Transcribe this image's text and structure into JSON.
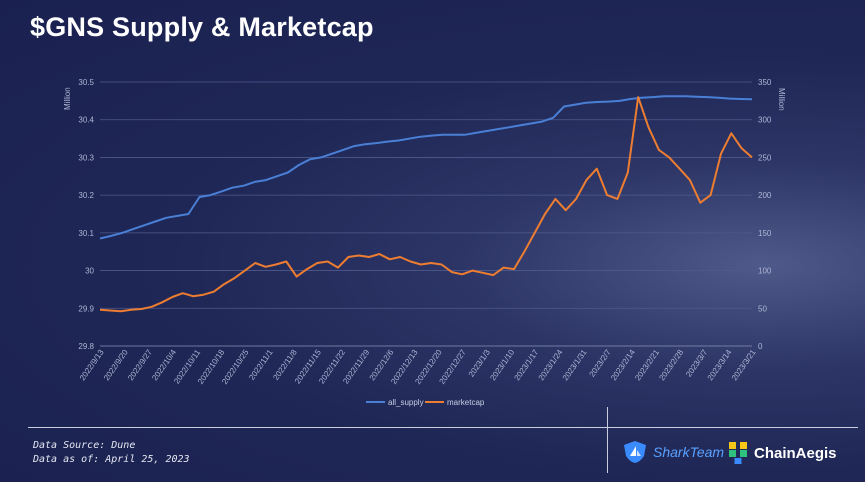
{
  "title": "$GNS Supply & Marketcap",
  "footer": {
    "source": "Data Source: Dune",
    "as_of": "Data as of: April 25, 2023"
  },
  "logos": {
    "sharkteam": "SharkTeam",
    "chainaegis": "ChainAegis"
  },
  "chart_data": {
    "type": "line",
    "title": "$GNS Supply & Marketcap",
    "y_left_label": "Million",
    "y_right_label": "Million",
    "y_left_lim": [
      29.8,
      30.5
    ],
    "y_left_ticks": [
      "29.8",
      "29.9",
      "30",
      "30.1",
      "30.2",
      "30.3",
      "30.4",
      "30.5"
    ],
    "y_right_lim": [
      0,
      350
    ],
    "y_right_ticks": [
      "0",
      "50",
      "100",
      "150",
      "200",
      "250",
      "300",
      "350"
    ],
    "x_ticks": [
      "2022/9/13",
      "2022/9/20",
      "2022/9/27",
      "2022/10/4",
      "2022/10/11",
      "2022/10/18",
      "2022/10/25",
      "2022/11/1",
      "2022/11/8",
      "2022/11/15",
      "2022/11/22",
      "2022/11/29",
      "2022/12/6",
      "2022/12/13",
      "2022/12/20",
      "2022/12/27",
      "2023/1/3",
      "2023/1/10",
      "2023/1/17",
      "2023/1/24",
      "2023/1/31",
      "2023/2/7",
      "2023/2/14",
      "2023/2/21",
      "2023/2/28",
      "2023/3/7",
      "2023/3/14",
      "2023/3/21"
    ],
    "grid": true,
    "legend_position": "bottom",
    "colors": {
      "all_supply": "#4a7fd6",
      "marketcap": "#ed7d31"
    },
    "series": [
      {
        "name": "all_supply",
        "axis": "left",
        "values": [
          30.085,
          30.092,
          30.1,
          30.11,
          30.12,
          30.13,
          30.14,
          30.145,
          30.15,
          30.195,
          30.2,
          30.21,
          30.22,
          30.225,
          30.235,
          30.24,
          30.25,
          30.26,
          30.28,
          30.295,
          30.3,
          30.31,
          30.32,
          30.33,
          30.335,
          30.338,
          30.342,
          30.345,
          30.35,
          30.355,
          30.358,
          30.36,
          30.36,
          30.36,
          30.365,
          30.37,
          30.375,
          30.38,
          30.385,
          30.39,
          30.395,
          30.405,
          30.435,
          30.44,
          30.445,
          30.447,
          30.448,
          30.45,
          30.455,
          30.458,
          30.46,
          30.462,
          30.462,
          30.462,
          30.461,
          30.46,
          30.458,
          30.456,
          30.455,
          30.454
        ]
      },
      {
        "name": "marketcap",
        "axis": "right",
        "values": [
          48,
          47,
          46,
          48,
          49,
          52,
          58,
          65,
          70,
          66,
          68,
          72,
          82,
          90,
          100,
          110,
          105,
          108,
          112,
          92,
          102,
          110,
          112,
          104,
          118,
          120,
          118,
          122,
          115,
          118,
          112,
          108,
          110,
          108,
          98,
          95,
          100,
          97,
          94,
          104,
          102,
          125,
          150,
          175,
          195,
          180,
          195,
          220,
          235,
          200,
          195,
          230,
          330,
          290,
          260,
          250,
          235,
          220,
          190,
          200,
          255,
          282,
          262,
          250
        ]
      }
    ]
  }
}
